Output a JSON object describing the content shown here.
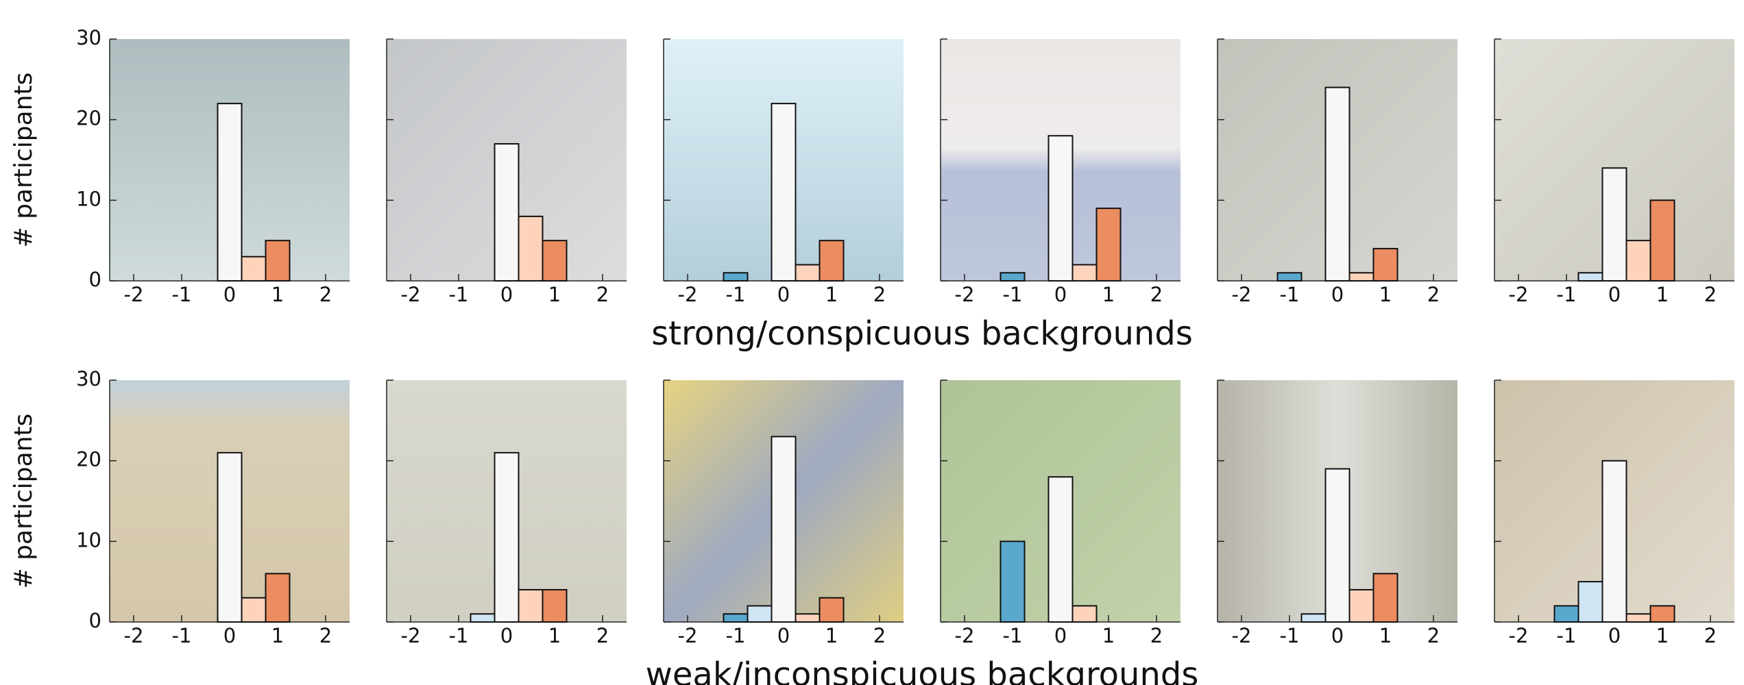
{
  "row_labels": [
    {
      "xlabel": "strong/conspicuous backgrounds",
      "ylabel": "# participants"
    },
    {
      "xlabel": "weak/inconspicuous backgrounds",
      "ylabel": "# participants"
    }
  ],
  "bar_colors": [
    "#5ba8cd",
    "#cfe5f2",
    "#f7f7f7",
    "#fdd3bb",
    "#ec8c61"
  ],
  "chart_data": [
    {
      "type": "bar",
      "row": 0,
      "x": [
        -1,
        -0.5,
        0,
        0.5,
        1
      ],
      "values": [
        0,
        0,
        22,
        3,
        5
      ],
      "xlim": [
        -2.5,
        2.5
      ],
      "xticks": [
        -2,
        -1,
        0,
        1,
        2
      ],
      "ylim": [
        0,
        30
      ],
      "yticks": [
        0,
        10,
        20,
        30
      ]
    },
    {
      "type": "bar",
      "row": 0,
      "x": [
        -1,
        -0.5,
        0,
        0.5,
        1
      ],
      "values": [
        0,
        0,
        17,
        8,
        5
      ],
      "xlim": [
        -2.5,
        2.5
      ],
      "xticks": [
        -2,
        -1,
        0,
        1,
        2
      ],
      "ylim": [
        0,
        30
      ],
      "yticks": [
        0,
        10,
        20,
        30
      ]
    },
    {
      "type": "bar",
      "row": 0,
      "x": [
        -1,
        -0.5,
        0,
        0.5,
        1
      ],
      "values": [
        1,
        0,
        22,
        2,
        5
      ],
      "xlim": [
        -2.5,
        2.5
      ],
      "xticks": [
        -2,
        -1,
        0,
        1,
        2
      ],
      "ylim": [
        0,
        30
      ],
      "yticks": [
        0,
        10,
        20,
        30
      ]
    },
    {
      "type": "bar",
      "row": 0,
      "x": [
        -1,
        -0.5,
        0,
        0.5,
        1
      ],
      "values": [
        1,
        0,
        18,
        2,
        9
      ],
      "xlim": [
        -2.5,
        2.5
      ],
      "xticks": [
        -2,
        -1,
        0,
        1,
        2
      ],
      "ylim": [
        0,
        30
      ],
      "yticks": [
        0,
        10,
        20,
        30
      ]
    },
    {
      "type": "bar",
      "row": 0,
      "x": [
        -1,
        -0.5,
        0,
        0.5,
        1
      ],
      "values": [
        1,
        0,
        24,
        1,
        4
      ],
      "xlim": [
        -2.5,
        2.5
      ],
      "xticks": [
        -2,
        -1,
        0,
        1,
        2
      ],
      "ylim": [
        0,
        30
      ],
      "yticks": [
        0,
        10,
        20,
        30
      ]
    },
    {
      "type": "bar",
      "row": 0,
      "x": [
        -1,
        -0.5,
        0,
        0.5,
        1
      ],
      "values": [
        0,
        1,
        14,
        5,
        10
      ],
      "xlim": [
        -2.5,
        2.5
      ],
      "xticks": [
        -2,
        -1,
        0,
        1,
        2
      ],
      "ylim": [
        0,
        30
      ],
      "yticks": [
        0,
        10,
        20,
        30
      ]
    },
    {
      "type": "bar",
      "row": 1,
      "x": [
        -1,
        -0.5,
        0,
        0.5,
        1
      ],
      "values": [
        0,
        0,
        21,
        3,
        6
      ],
      "xlim": [
        -2.5,
        2.5
      ],
      "xticks": [
        -2,
        -1,
        0,
        1,
        2
      ],
      "ylim": [
        0,
        30
      ],
      "yticks": [
        0,
        10,
        20,
        30
      ]
    },
    {
      "type": "bar",
      "row": 1,
      "x": [
        -1,
        -0.5,
        0,
        0.5,
        1
      ],
      "values": [
        0,
        1,
        21,
        4,
        4
      ],
      "xlim": [
        -2.5,
        2.5
      ],
      "xticks": [
        -2,
        -1,
        0,
        1,
        2
      ],
      "ylim": [
        0,
        30
      ],
      "yticks": [
        0,
        10,
        20,
        30
      ]
    },
    {
      "type": "bar",
      "row": 1,
      "x": [
        -1,
        -0.5,
        0,
        0.5,
        1
      ],
      "values": [
        1,
        2,
        23,
        1,
        3
      ],
      "xlim": [
        -2.5,
        2.5
      ],
      "xticks": [
        -2,
        -1,
        0,
        1,
        2
      ],
      "ylim": [
        0,
        30
      ],
      "yticks": [
        0,
        10,
        20,
        30
      ]
    },
    {
      "type": "bar",
      "row": 1,
      "x": [
        -1,
        -0.5,
        0,
        0.5,
        1
      ],
      "values": [
        10,
        0,
        18,
        2,
        0
      ],
      "xlim": [
        -2.5,
        2.5
      ],
      "xticks": [
        -2,
        -1,
        0,
        1,
        2
      ],
      "ylim": [
        0,
        30
      ],
      "yticks": [
        0,
        10,
        20,
        30
      ]
    },
    {
      "type": "bar",
      "row": 1,
      "x": [
        -1,
        -0.5,
        0,
        0.5,
        1
      ],
      "values": [
        0,
        1,
        19,
        4,
        6
      ],
      "xlim": [
        -2.5,
        2.5
      ],
      "xticks": [
        -2,
        -1,
        0,
        1,
        2
      ],
      "ylim": [
        0,
        30
      ],
      "yticks": [
        0,
        10,
        20,
        30
      ]
    },
    {
      "type": "bar",
      "row": 1,
      "x": [
        -1,
        -0.5,
        0,
        0.5,
        1
      ],
      "values": [
        2,
        5,
        20,
        1,
        2
      ],
      "xlim": [
        -2.5,
        2.5
      ],
      "xticks": [
        -2,
        -1,
        0,
        1,
        2
      ],
      "ylim": [
        0,
        30
      ],
      "yticks": [
        0,
        10,
        20,
        30
      ]
    }
  ]
}
